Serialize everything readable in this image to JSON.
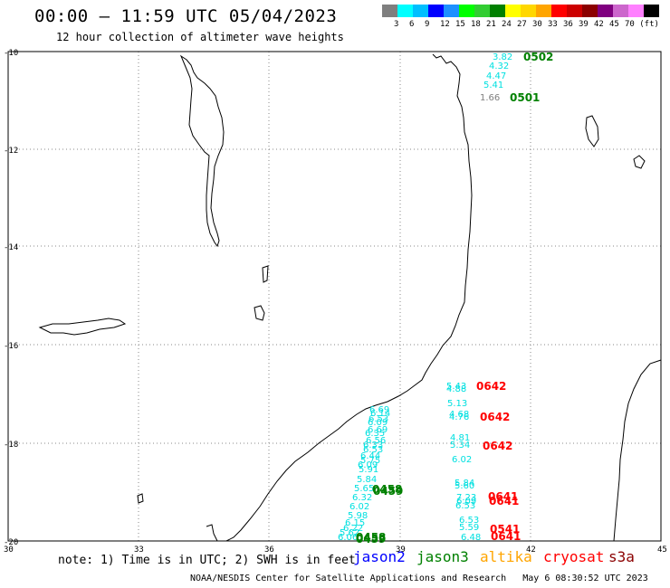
{
  "header": {
    "title": "00:00 – 11:59 UTC 05/04/2023",
    "subtitle": "12 hour collection of altimeter wave heights"
  },
  "legend": {
    "colors": [
      "#7f7f7f",
      "#00ffff",
      "#00bfff",
      "#0000ff",
      "#1e90ff",
      "#00ff00",
      "#32cd32",
      "#008000",
      "#ffff00",
      "#ffd700",
      "#ffa500",
      "#ff0000",
      "#cc0000",
      "#8b0000",
      "#800080",
      "#cc66cc",
      "#ff80ff",
      "#000000"
    ],
    "labels": [
      "3",
      "6",
      "9",
      "12",
      "15",
      "18",
      "21",
      "24",
      "27",
      "30",
      "33",
      "36",
      "39",
      "42",
      "45",
      "70 (ft)"
    ]
  },
  "axes": {
    "lon_ticks": [
      "30",
      "33",
      "36",
      "39",
      "42",
      "45"
    ],
    "lat_ticks": [
      "-10",
      "-12",
      "-14",
      "-16",
      "-18",
      "-20"
    ]
  },
  "passes": [
    {
      "label": "0502",
      "color": "#008000"
    },
    {
      "label": "0501",
      "color": "#008000"
    },
    {
      "label": "0642",
      "color": "#ff0000"
    },
    {
      "label": "0642",
      "color": "#ff0000"
    },
    {
      "label": "0642",
      "color": "#ff0000"
    },
    {
      "label": "0458",
      "color": "#008000"
    },
    {
      "label": "0459",
      "color": "#008000"
    },
    {
      "label": "0458",
      "color": "#008000"
    },
    {
      "label": "0459",
      "color": "#008000"
    },
    {
      "label": "0641",
      "color": "#ff0000"
    },
    {
      "label": "0641",
      "color": "#ff0000"
    },
    {
      "label": "0541",
      "color": "#ff0000"
    },
    {
      "label": "0641",
      "color": "#ff0000"
    }
  ],
  "wave_values": [
    "3.82",
    "4.32",
    "4.47",
    "5.41",
    "1.66",
    "5.43",
    "4.88",
    "5.13",
    "4.68",
    "4.76",
    "4.81",
    "5.34",
    "6.02",
    "5.84",
    "5.60",
    "7.23",
    "6.09",
    "6.53",
    "6.53",
    "5.59",
    "6.48",
    "6.69",
    "6.53",
    "6.69",
    "6.56",
    "6.53",
    "5.75",
    "5.91",
    "5.84",
    "5.65",
    "6.32",
    "6.02",
    "5.98",
    "6.15",
    "6.22",
    "5.62",
    "6.06",
    "6.14",
    "6.09",
    "6.35",
    "6.33",
    "6.44",
    "6.09"
  ],
  "wave_colors": {
    "normal": "#00e0e0",
    "low": "#7f7f7f"
  },
  "footer": {
    "note": "note: 1) Time is in UTC; 2) SWH is in feet",
    "satellites": [
      {
        "name": "jason2",
        "color": "#0000ff"
      },
      {
        "name": "jason3",
        "color": "#008000"
      },
      {
        "name": "altika",
        "color": "#ffa500"
      },
      {
        "name": "cryosat",
        "color": "#ff0000"
      },
      {
        "name": "s3a",
        "color": "#8b0000"
      }
    ],
    "credit": "NOAA/NESDIS Center for Satellite Applications and Research",
    "timestamp": "May  6 08:30:52 UTC 2023"
  }
}
